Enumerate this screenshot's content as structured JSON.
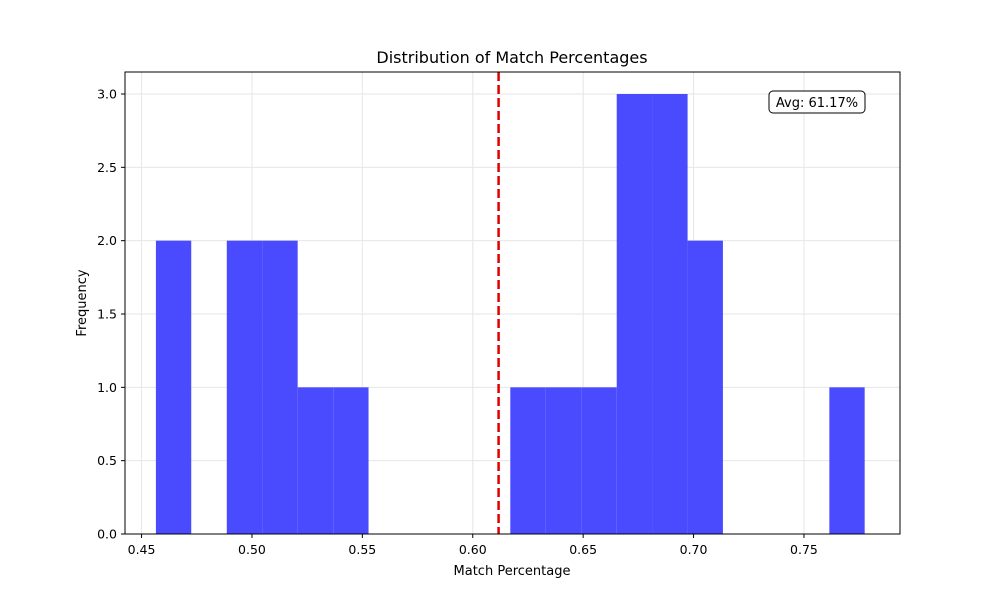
{
  "chart_data": {
    "type": "bar",
    "title": "Distribution of Match Percentages",
    "xlabel": "Match Percentage",
    "ylabel": "Frequency",
    "xlim": [
      0.4425,
      0.7935
    ],
    "ylim": [
      0,
      3.15
    ],
    "xticks": [
      0.45,
      0.5,
      0.55,
      0.6,
      0.65,
      0.7,
      0.75
    ],
    "xtick_labels": [
      "0.45",
      "0.50",
      "0.55",
      "0.60",
      "0.65",
      "0.70",
      "0.75"
    ],
    "yticks": [
      0,
      0.5,
      1.0,
      1.5,
      2.0,
      2.5,
      3.0
    ],
    "ytick_labels": [
      "0.0",
      "0.5",
      "1.0",
      "1.5",
      "2.0",
      "2.5",
      "3.0"
    ],
    "bins": [
      {
        "x0": 0.4565,
        "x1": 0.4725,
        "count": 2
      },
      {
        "x0": 0.4725,
        "x1": 0.4886,
        "count": 0
      },
      {
        "x0": 0.4886,
        "x1": 0.5046,
        "count": 2
      },
      {
        "x0": 0.5046,
        "x1": 0.5207,
        "count": 2
      },
      {
        "x0": 0.5207,
        "x1": 0.5368,
        "count": 1
      },
      {
        "x0": 0.5368,
        "x1": 0.5528,
        "count": 1
      },
      {
        "x0": 0.5528,
        "x1": 0.5689,
        "count": 0
      },
      {
        "x0": 0.5689,
        "x1": 0.5849,
        "count": 0
      },
      {
        "x0": 0.5849,
        "x1": 0.601,
        "count": 0
      },
      {
        "x0": 0.601,
        "x1": 0.617,
        "count": 0
      },
      {
        "x0": 0.617,
        "x1": 0.6331,
        "count": 1
      },
      {
        "x0": 0.6331,
        "x1": 0.6491,
        "count": 1
      },
      {
        "x0": 0.6491,
        "x1": 0.6652,
        "count": 1
      },
      {
        "x0": 0.6652,
        "x1": 0.6812,
        "count": 3
      },
      {
        "x0": 0.6812,
        "x1": 0.6973,
        "count": 3
      },
      {
        "x0": 0.6973,
        "x1": 0.7133,
        "count": 2
      },
      {
        "x0": 0.7133,
        "x1": 0.7294,
        "count": 0
      },
      {
        "x0": 0.7294,
        "x1": 0.7454,
        "count": 0
      },
      {
        "x0": 0.7454,
        "x1": 0.7615,
        "count": 0
      },
      {
        "x0": 0.7615,
        "x1": 0.7775,
        "count": 1
      }
    ],
    "mean_line": {
      "x": 0.6117,
      "color": "#e00000",
      "style": "dashed"
    },
    "annotation": {
      "text": "Avg: 61.17%",
      "placement": "top-right"
    },
    "bar_color": "#4a4aff",
    "grid": true
  }
}
